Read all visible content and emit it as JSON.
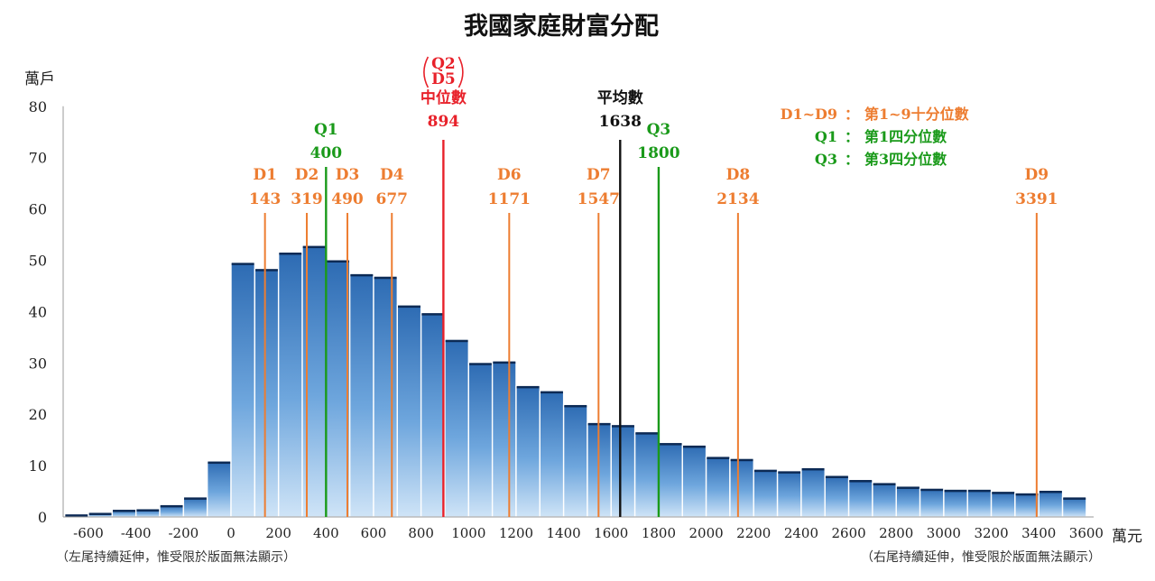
{
  "chart_data": {
    "type": "bar",
    "title": "我國家庭財富分配",
    "ylabel": "萬戶",
    "xlabel": "萬元",
    "ylim": [
      0,
      80
    ],
    "yticks": [
      0,
      10,
      20,
      30,
      40,
      50,
      60,
      70,
      80
    ],
    "xticks": [
      -600,
      -400,
      -200,
      0,
      200,
      400,
      600,
      800,
      1000,
      1200,
      1400,
      1600,
      1800,
      2000,
      2200,
      2400,
      2600,
      2800,
      3000,
      3200,
      3400,
      3600
    ],
    "bin_width": 100,
    "bins": [
      {
        "x": -650,
        "value": 0.5
      },
      {
        "x": -550,
        "value": 0.8
      },
      {
        "x": -450,
        "value": 1.4
      },
      {
        "x": -350,
        "value": 1.5
      },
      {
        "x": -250,
        "value": 2.3
      },
      {
        "x": -150,
        "value": 3.8
      },
      {
        "x": -50,
        "value": 10.8
      },
      {
        "x": 50,
        "value": 49.5
      },
      {
        "x": 150,
        "value": 48.3
      },
      {
        "x": 250,
        "value": 51.5
      },
      {
        "x": 350,
        "value": 52.8
      },
      {
        "x": 450,
        "value": 50.0
      },
      {
        "x": 550,
        "value": 47.3
      },
      {
        "x": 650,
        "value": 46.8
      },
      {
        "x": 750,
        "value": 41.2
      },
      {
        "x": 850,
        "value": 39.7
      },
      {
        "x": 950,
        "value": 34.5
      },
      {
        "x": 1050,
        "value": 30.0
      },
      {
        "x": 1150,
        "value": 30.3
      },
      {
        "x": 1250,
        "value": 25.5
      },
      {
        "x": 1350,
        "value": 24.5
      },
      {
        "x": 1450,
        "value": 21.8
      },
      {
        "x": 1550,
        "value": 18.3
      },
      {
        "x": 1650,
        "value": 17.9
      },
      {
        "x": 1750,
        "value": 16.5
      },
      {
        "x": 1850,
        "value": 14.4
      },
      {
        "x": 1950,
        "value": 13.9
      },
      {
        "x": 2050,
        "value": 11.7
      },
      {
        "x": 2150,
        "value": 11.3
      },
      {
        "x": 2250,
        "value": 9.2
      },
      {
        "x": 2350,
        "value": 8.9
      },
      {
        "x": 2450,
        "value": 9.5
      },
      {
        "x": 2550,
        "value": 8.0
      },
      {
        "x": 2650,
        "value": 7.2
      },
      {
        "x": 2750,
        "value": 6.6
      },
      {
        "x": 2850,
        "value": 5.9
      },
      {
        "x": 2950,
        "value": 5.5
      },
      {
        "x": 3050,
        "value": 5.3
      },
      {
        "x": 3150,
        "value": 5.3
      },
      {
        "x": 3250,
        "value": 4.9
      },
      {
        "x": 3350,
        "value": 4.6
      },
      {
        "x": 3450,
        "value": 5.1
      },
      {
        "x": 3550,
        "value": 3.8
      }
    ],
    "markers": [
      {
        "label": "D1",
        "value": 143,
        "plot_x": 143,
        "color": "#ed7d31",
        "tier": "low"
      },
      {
        "label": "D2",
        "value": 319,
        "plot_x": 319,
        "color": "#ed7d31",
        "tier": "low"
      },
      {
        "label": "Q1",
        "value": 400,
        "plot_x": 400,
        "color": "#1a9a1a",
        "tier": "mid"
      },
      {
        "label": "D3",
        "value": 490,
        "plot_x": 490,
        "color": "#ed7d31",
        "tier": "low"
      },
      {
        "label": "D4",
        "value": 677,
        "plot_x": 677,
        "color": "#ed7d31",
        "tier": "low"
      },
      {
        "label": "中位數",
        "value": 894,
        "plot_x": 894,
        "color": "#e8212a",
        "tier": "high",
        "extra_lines": [
          "Q2",
          "D5"
        ]
      },
      {
        "label": "D6",
        "value": 1171,
        "plot_x": 1171,
        "color": "#ed7d31",
        "tier": "low"
      },
      {
        "label": "D7",
        "value": 1547,
        "plot_x": 1547,
        "color": "#ed7d31",
        "tier": "low"
      },
      {
        "label": "平均數",
        "value": 1638,
        "plot_x": 1638,
        "color": "#111111",
        "tier": "high"
      },
      {
        "label": "Q3",
        "value": 1800,
        "plot_x": 1800,
        "color": "#1a9a1a",
        "tier": "mid"
      },
      {
        "label": "D8",
        "value": 2134,
        "plot_x": 2134,
        "color": "#ed7d31",
        "tier": "low"
      },
      {
        "label": "D9",
        "value": 3391,
        "plot_x": 3391,
        "color": "#ed7d31",
        "tier": "low"
      }
    ],
    "legend": [
      {
        "key": "D1~D9",
        "text": "第1~9十分位數",
        "color": "#ed7d31"
      },
      {
        "key": "Q1",
        "text": "第1四分位數",
        "color": "#1a9a1a"
      },
      {
        "key": "Q3",
        "text": "第3四分位數",
        "color": "#1a9a1a"
      }
    ],
    "legend_sep": "：",
    "notes": {
      "left": "（左尾持續延伸，惟受限於版面無法顯示）",
      "right": "（右尾持續延伸，惟受限於版面無法顯示）"
    }
  }
}
